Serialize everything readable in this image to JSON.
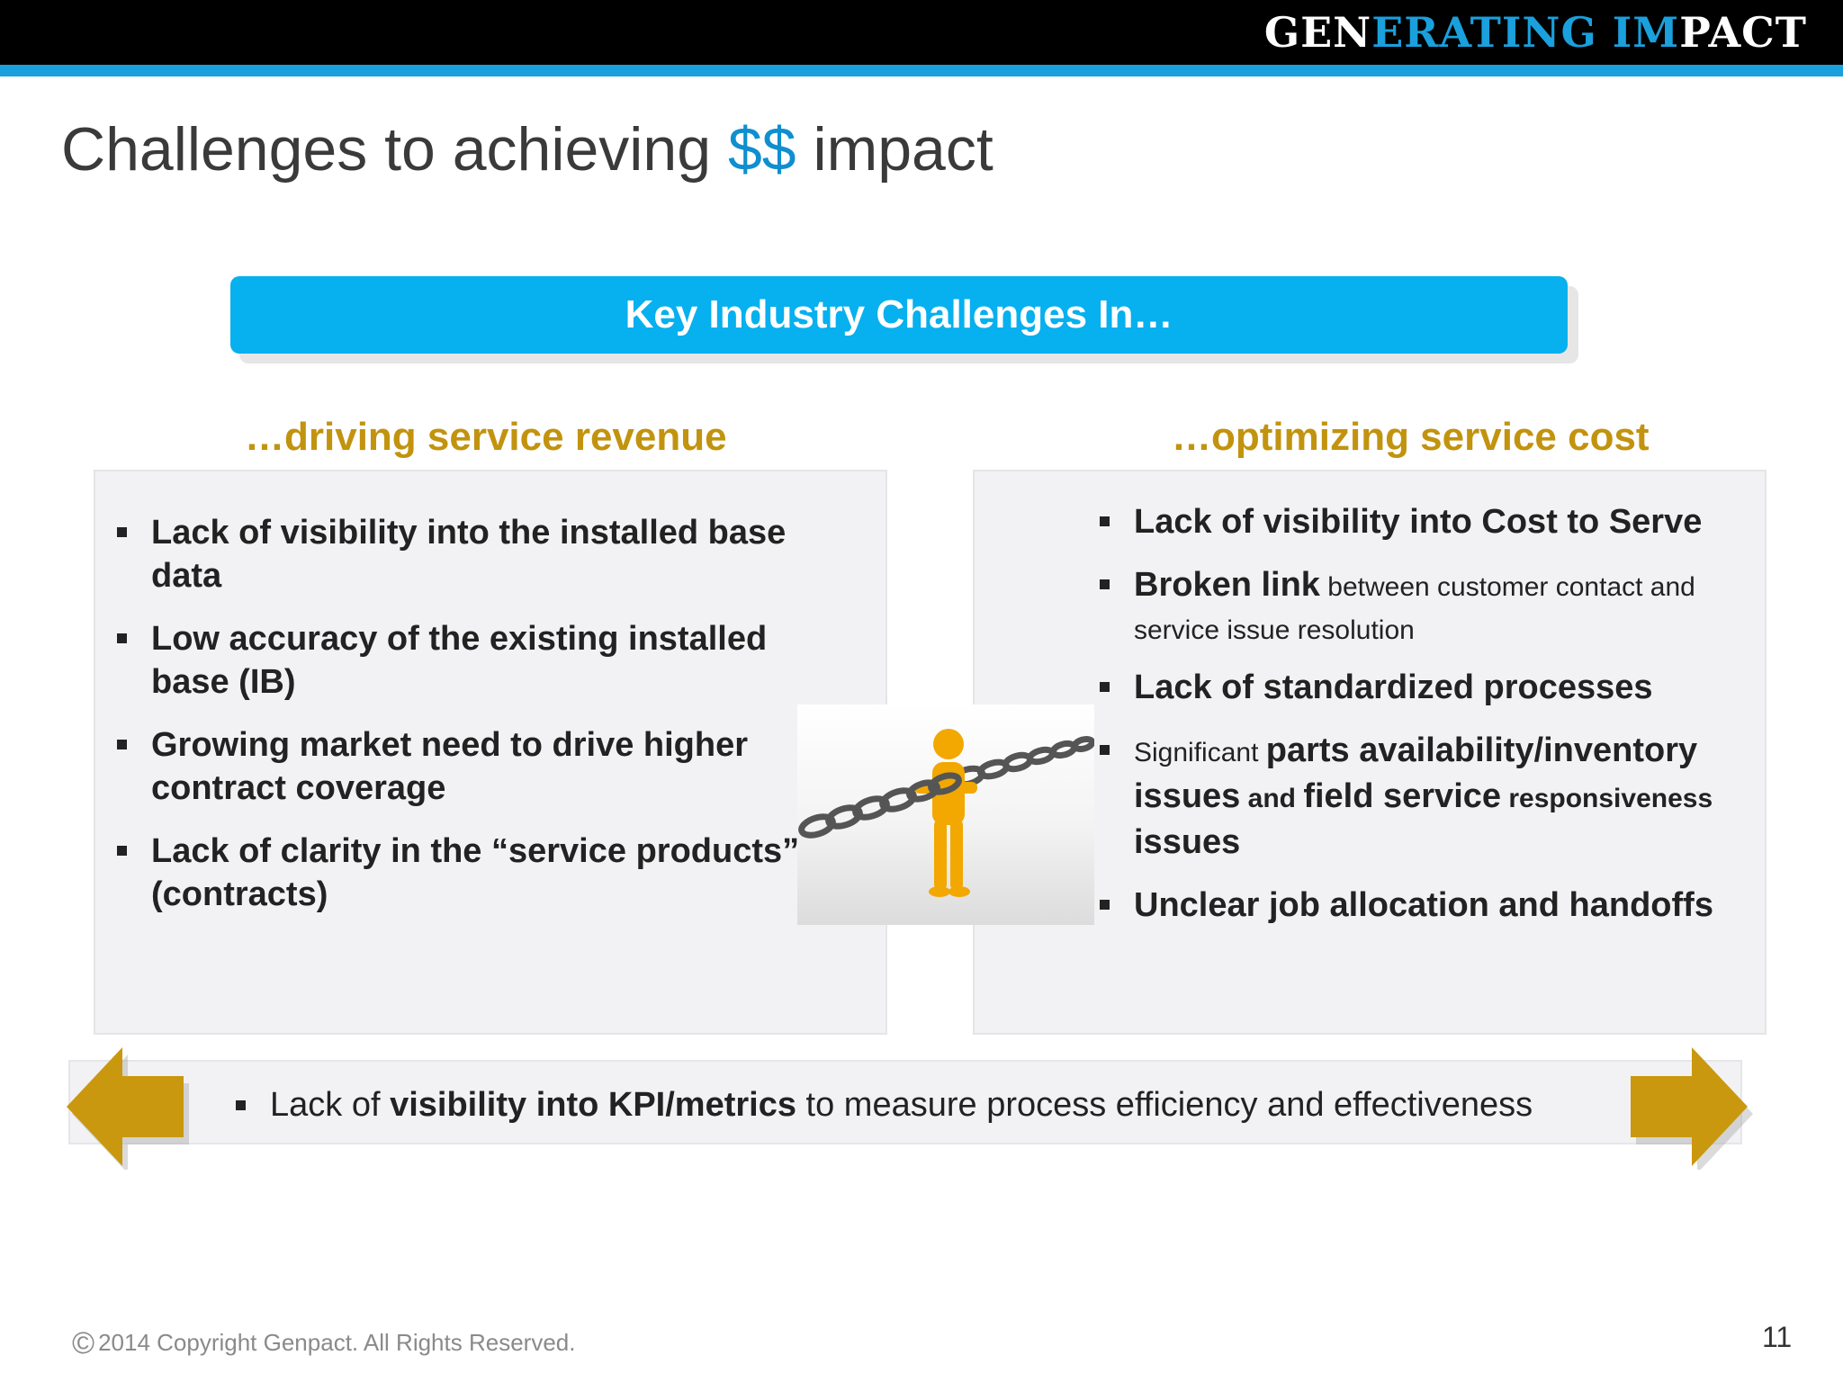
{
  "header": {
    "brand_part1": "GEN",
    "brand_part2": "ERATING IM",
    "brand_part3": "PACT"
  },
  "slide": {
    "title_pre": "Challenges to achieving ",
    "title_accent": "$$",
    "title_post": " impact",
    "banner": "Key Industry Challenges In…"
  },
  "left_column": {
    "heading": "…driving service revenue",
    "items": [
      "Lack of visibility into the installed base data",
      "Low accuracy of the existing installed base (IB)",
      "Growing market need to drive higher contract coverage",
      "Lack of clarity in the “service products” (contracts)"
    ]
  },
  "right_column": {
    "heading": "…optimizing service cost",
    "item1": "Lack of visibility into Cost to Serve",
    "item2_bold": "Broken link",
    "item2_rest": " between customer contact and service issue resolution",
    "item3": "Lack of standardized processes",
    "item4_a": "Significant ",
    "item4_b": "parts availability/inventory issues",
    "item4_c": " and ",
    "item4_d": "field service",
    "item4_e": " responsiveness",
    "item4_f": " issues",
    "item5": "Unclear job allocation and handoffs"
  },
  "bottom": {
    "pre": "Lack of ",
    "bold": "visibility into KPI/metrics",
    "post": " to measure process efficiency and effectiveness"
  },
  "footer": {
    "copyright_symbol": "©",
    "copyright": "2014 Copyright Genpact. All Rights Reserved.",
    "page_number": "11"
  },
  "colors": {
    "accent_blue": "#1aa0dc",
    "banner_blue": "#07b0ee",
    "heading_gold": "#c2930e",
    "arrow_gold": "#c9980f"
  }
}
